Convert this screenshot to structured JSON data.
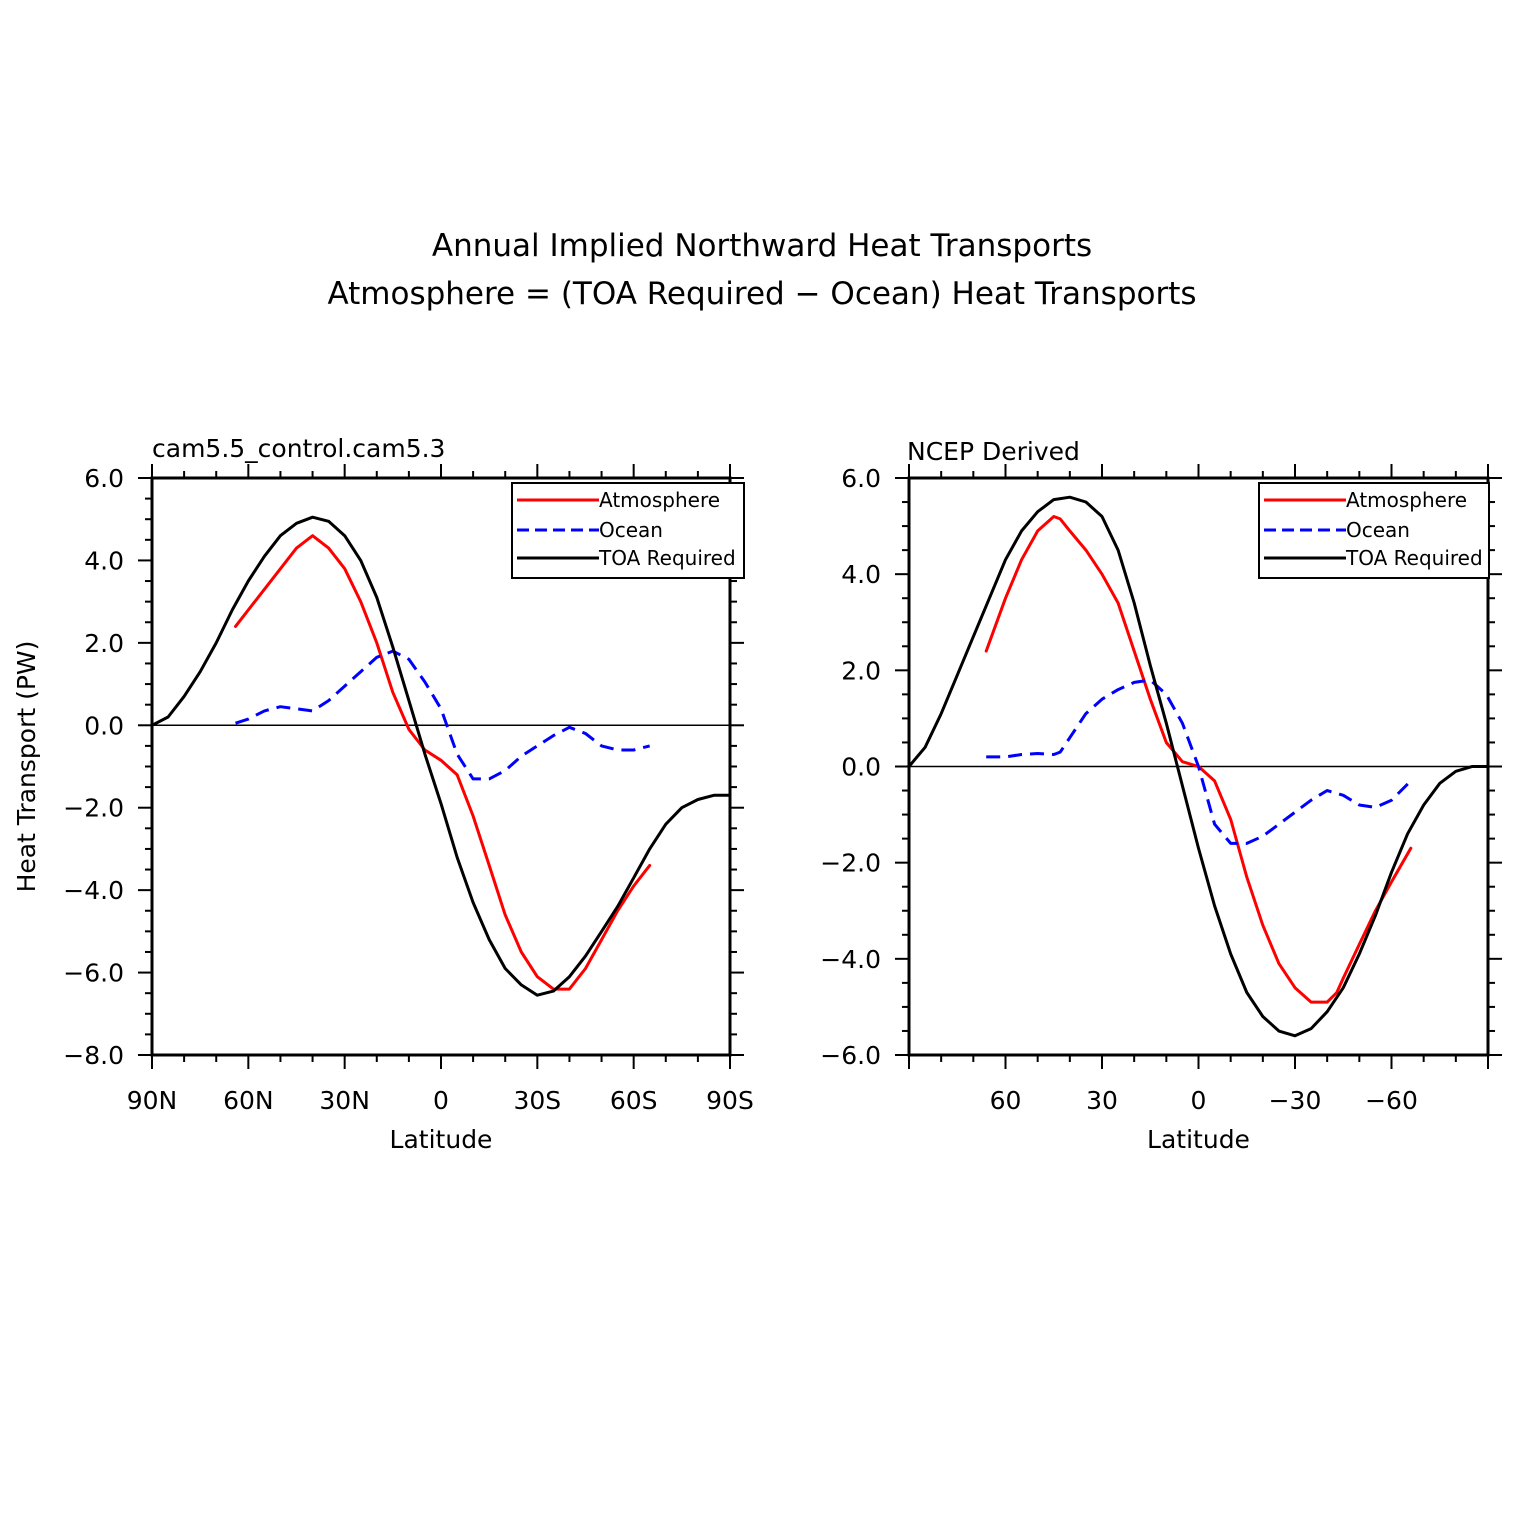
{
  "figure": {
    "title_line1": "Annual Implied Northward Heat Transports",
    "title_line2": "Atmosphere = (TOA Required − Ocean) Heat Transports"
  },
  "colors": {
    "atmosphere": "#ff0000",
    "ocean": "#0000ff",
    "toa": "#000000"
  },
  "chart_data": [
    {
      "type": "line",
      "title": "cam5.5_control.cam5.3",
      "xlabel": "Latitude",
      "ylabel": "Heat Transport (PW)",
      "xlim": [
        90,
        -90
      ],
      "ylim": [
        -8,
        6
      ],
      "x_ticks": [
        90,
        60,
        30,
        0,
        -30,
        -60,
        -90
      ],
      "x_tick_labels": [
        "90N",
        "60N",
        "30N",
        "0",
        "30S",
        "60S",
        "90S"
      ],
      "y_ticks": [
        6,
        4,
        2,
        0,
        -2,
        -4,
        -6,
        -8
      ],
      "y_tick_labels": [
        "6.0",
        "4.0",
        "2.0",
        "0.0",
        "−2.0",
        "−4.0",
        "−6.0",
        "−8.0"
      ],
      "legend_position": "top-right",
      "zero_line": true,
      "series": [
        {
          "name": "Atmosphere",
          "style": "solid",
          "color_key": "atmosphere",
          "x": [
            64,
            55,
            45,
            40,
            35,
            30,
            25,
            20,
            15,
            10,
            5,
            0,
            -5,
            -10,
            -15,
            -20,
            -25,
            -30,
            -35,
            -40,
            -45,
            -50,
            -55,
            -60,
            -65
          ],
          "y": [
            2.4,
            3.3,
            4.3,
            4.6,
            4.3,
            3.8,
            3.0,
            2.0,
            0.8,
            -0.1,
            -0.6,
            -0.85,
            -1.2,
            -2.2,
            -3.4,
            -4.6,
            -5.5,
            -6.1,
            -6.4,
            -6.4,
            -5.9,
            -5.2,
            -4.5,
            -3.9,
            -3.4
          ]
        },
        {
          "name": "Ocean",
          "style": "dashed",
          "color_key": "ocean",
          "x": [
            64,
            60,
            55,
            50,
            45,
            40,
            35,
            30,
            25,
            20,
            15,
            10,
            5,
            0,
            -5,
            -10,
            -15,
            -20,
            -25,
            -30,
            -35,
            -40,
            -45,
            -50,
            -55,
            -60,
            -65
          ],
          "y": [
            0.05,
            0.15,
            0.35,
            0.45,
            0.4,
            0.35,
            0.6,
            0.95,
            1.3,
            1.65,
            1.8,
            1.6,
            1.05,
            0.4,
            -0.7,
            -1.3,
            -1.3,
            -1.1,
            -0.75,
            -0.5,
            -0.25,
            -0.05,
            -0.2,
            -0.5,
            -0.6,
            -0.6,
            -0.5
          ]
        },
        {
          "name": "TOA Required",
          "style": "solid",
          "color_key": "toa",
          "x": [
            90,
            85,
            80,
            75,
            70,
            65,
            60,
            55,
            50,
            45,
            40,
            35,
            30,
            25,
            20,
            15,
            10,
            5,
            0,
            -5,
            -10,
            -15,
            -20,
            -25,
            -30,
            -35,
            -40,
            -45,
            -50,
            -55,
            -60,
            -65,
            -70,
            -75,
            -80,
            -85,
            -90
          ],
          "y": [
            0.0,
            0.2,
            0.7,
            1.3,
            2.0,
            2.8,
            3.5,
            4.1,
            4.6,
            4.9,
            5.05,
            4.95,
            4.6,
            4.0,
            3.1,
            1.9,
            0.6,
            -0.7,
            -1.9,
            -3.2,
            -4.3,
            -5.2,
            -5.9,
            -6.3,
            -6.55,
            -6.45,
            -6.1,
            -5.6,
            -5.0,
            -4.4,
            -3.7,
            -3.0,
            -2.4,
            -2.0,
            -1.8,
            -1.7,
            -1.7
          ]
        }
      ]
    },
    {
      "type": "line",
      "title": "NCEP Derived",
      "xlabel": "Latitude",
      "ylabel": "",
      "xlim": [
        90,
        -90
      ],
      "ylim": [
        -6,
        6
      ],
      "x_ticks": [
        60,
        30,
        0,
        -30,
        -60
      ],
      "x_tick_labels": [
        "60",
        "30",
        "0",
        "−30",
        "−60"
      ],
      "y_ticks": [
        6,
        4,
        2,
        0,
        -2,
        -4,
        -6
      ],
      "y_tick_labels": [
        "6.0",
        "4.0",
        "2.0",
        "0.0",
        "−2.0",
        "−4.0",
        "−6.0"
      ],
      "legend_position": "top-right",
      "zero_line": true,
      "series": [
        {
          "name": "Atmosphere",
          "style": "solid",
          "color_key": "atmosphere",
          "x": [
            66,
            60,
            55,
            50,
            45,
            43,
            40,
            35,
            30,
            25,
            20,
            15,
            10,
            5,
            0,
            -5,
            -10,
            -15,
            -20,
            -25,
            -30,
            -35,
            -40,
            -43,
            -45,
            -50,
            -55,
            -60,
            -66
          ],
          "y": [
            2.4,
            3.5,
            4.3,
            4.9,
            5.2,
            5.15,
            4.9,
            4.5,
            4.0,
            3.4,
            2.4,
            1.4,
            0.5,
            0.1,
            0.0,
            -0.3,
            -1.1,
            -2.3,
            -3.3,
            -4.1,
            -4.6,
            -4.9,
            -4.9,
            -4.7,
            -4.4,
            -3.7,
            -3.0,
            -2.4,
            -1.7
          ]
        },
        {
          "name": "Ocean",
          "style": "dashed",
          "color_key": "ocean",
          "x": [
            66,
            60,
            55,
            50,
            45,
            43,
            40,
            35,
            30,
            25,
            20,
            15,
            10,
            5,
            0,
            -5,
            -10,
            -15,
            -20,
            -25,
            -30,
            -35,
            -40,
            -45,
            -50,
            -55,
            -60,
            -66
          ],
          "y": [
            0.2,
            0.2,
            0.25,
            0.27,
            0.25,
            0.3,
            0.6,
            1.1,
            1.4,
            1.6,
            1.75,
            1.8,
            1.5,
            0.9,
            0.0,
            -1.2,
            -1.6,
            -1.6,
            -1.45,
            -1.2,
            -0.95,
            -0.7,
            -0.5,
            -0.6,
            -0.8,
            -0.85,
            -0.7,
            -0.3
          ]
        },
        {
          "name": "TOA Required",
          "style": "solid",
          "color_key": "toa",
          "x": [
            90,
            85,
            80,
            75,
            70,
            65,
            60,
            55,
            50,
            45,
            40,
            35,
            30,
            25,
            20,
            15,
            10,
            5,
            0,
            -5,
            -10,
            -15,
            -20,
            -25,
            -30,
            -35,
            -40,
            -45,
            -50,
            -55,
            -60,
            -65,
            -70,
            -75,
            -80,
            -85,
            -90
          ],
          "y": [
            0.0,
            0.4,
            1.1,
            1.9,
            2.7,
            3.5,
            4.3,
            4.9,
            5.3,
            5.55,
            5.6,
            5.5,
            5.2,
            4.5,
            3.4,
            2.1,
            0.9,
            -0.4,
            -1.7,
            -2.9,
            -3.9,
            -4.7,
            -5.2,
            -5.5,
            -5.6,
            -5.45,
            -5.1,
            -4.6,
            -3.9,
            -3.1,
            -2.2,
            -1.4,
            -0.8,
            -0.35,
            -0.1,
            0.0,
            0.0
          ]
        }
      ]
    }
  ]
}
